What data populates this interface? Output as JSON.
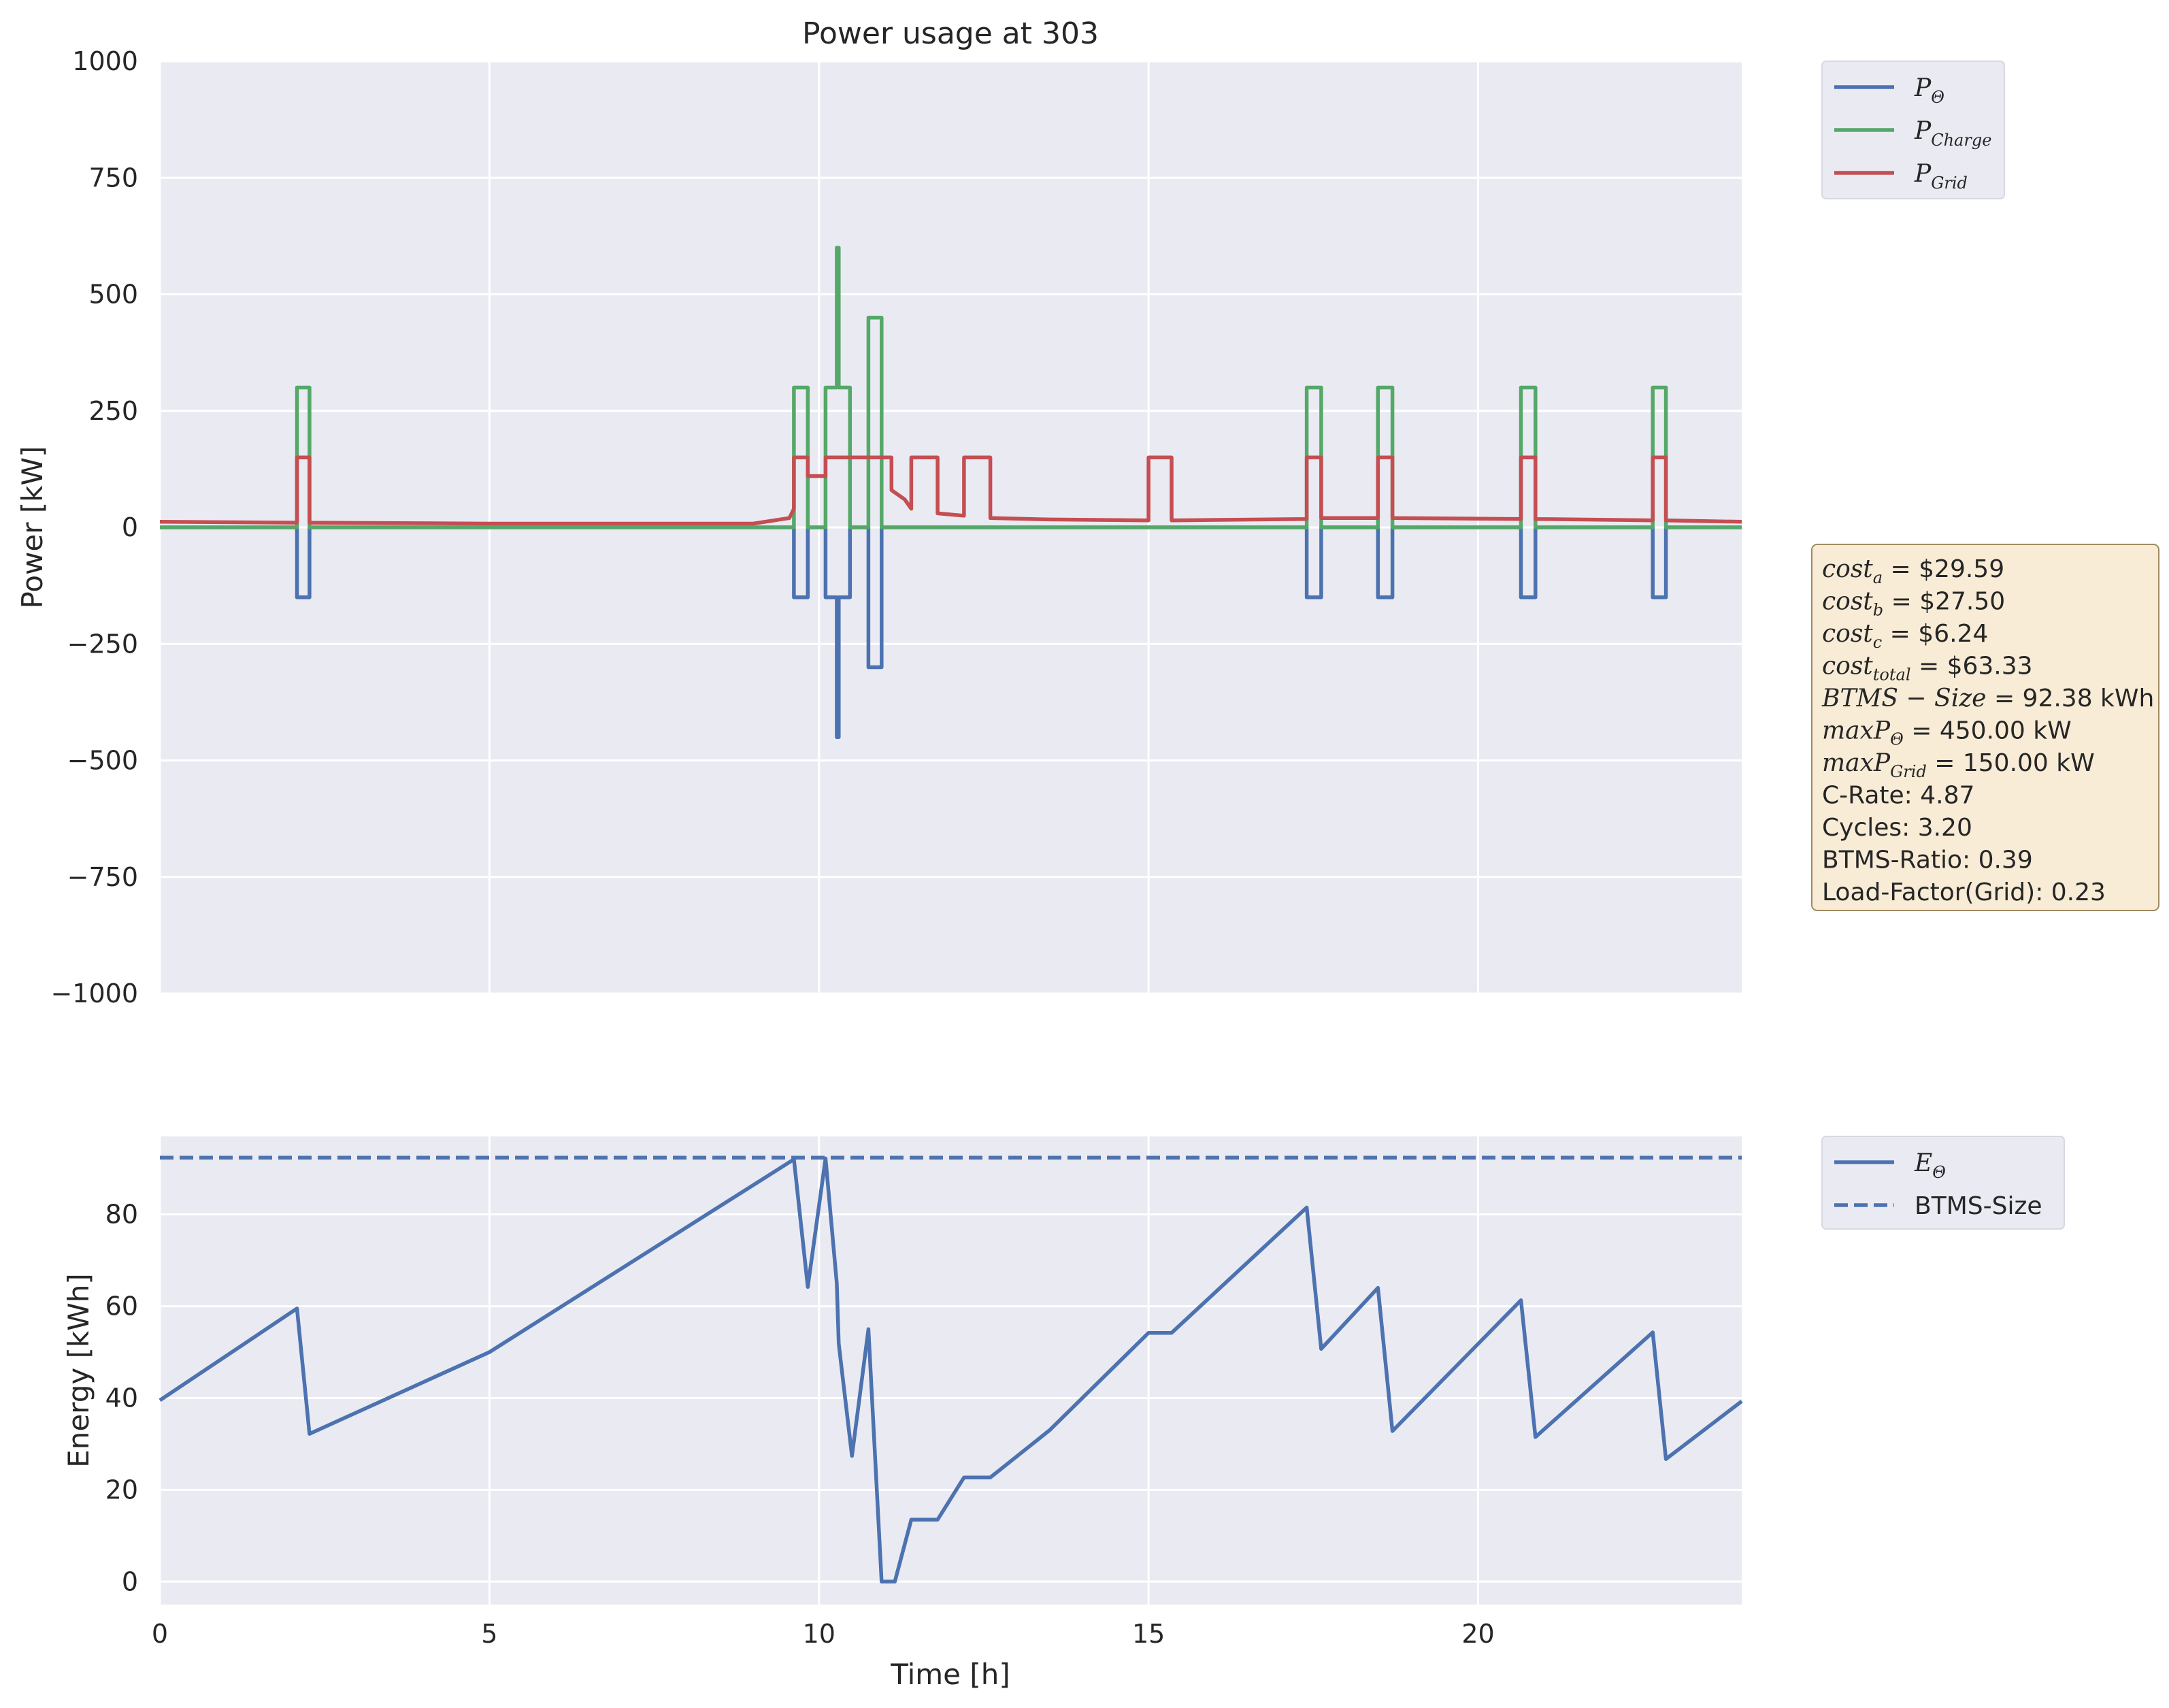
{
  "chart_data": [
    {
      "type": "line",
      "title": "Power usage at 303",
      "xlabel": "",
      "ylabel": "Power [kW]",
      "xlim": [
        0,
        24
      ],
      "ylim": [
        -1000,
        1000
      ],
      "x_ticks": [
        "0",
        "5",
        "10",
        "15",
        "20"
      ],
      "y_ticks": [
        "−1000",
        "−750",
        "−500",
        "−250",
        "0",
        "250",
        "500",
        "750",
        "1000"
      ],
      "grid": true,
      "legend_position": "outside-upper-right",
      "series": [
        {
          "name": "P_Θ",
          "legend_main": "P",
          "legend_sub": "Θ",
          "color": "#4c72b0",
          "points": [
            [
              0,
              0
            ],
            [
              2.08,
              0
            ],
            [
              2.08,
              -150
            ],
            [
              2.27,
              -150
            ],
            [
              2.27,
              0
            ],
            [
              9.62,
              0
            ],
            [
              9.62,
              -150
            ],
            [
              9.83,
              -150
            ],
            [
              9.83,
              0
            ],
            [
              10.1,
              0
            ],
            [
              10.1,
              -150
            ],
            [
              10.27,
              -150
            ],
            [
              10.27,
              -450
            ],
            [
              10.3,
              -450
            ],
            [
              10.3,
              -150
            ],
            [
              10.47,
              -150
            ],
            [
              10.47,
              0
            ],
            [
              10.75,
              0
            ],
            [
              10.75,
              -300
            ],
            [
              10.95,
              -300
            ],
            [
              10.95,
              0
            ],
            [
              17.4,
              0
            ],
            [
              17.4,
              -150
            ],
            [
              17.62,
              -150
            ],
            [
              17.62,
              0
            ],
            [
              18.48,
              0
            ],
            [
              18.48,
              -150
            ],
            [
              18.7,
              -150
            ],
            [
              18.7,
              0
            ],
            [
              20.65,
              0
            ],
            [
              20.65,
              -150
            ],
            [
              20.87,
              -150
            ],
            [
              20.87,
              0
            ],
            [
              22.65,
              0
            ],
            [
              22.65,
              -150
            ],
            [
              22.85,
              -150
            ],
            [
              22.85,
              0
            ],
            [
              24,
              0
            ]
          ]
        },
        {
          "name": "P_Charge",
          "legend_main": "P",
          "legend_sub": "Charge",
          "color": "#55a868",
          "points": [
            [
              0,
              0
            ],
            [
              2.08,
              0
            ],
            [
              2.08,
              300
            ],
            [
              2.27,
              300
            ],
            [
              2.27,
              0
            ],
            [
              9.62,
              0
            ],
            [
              9.62,
              300
            ],
            [
              9.83,
              300
            ],
            [
              9.83,
              0
            ],
            [
              10.1,
              0
            ],
            [
              10.1,
              300
            ],
            [
              10.27,
              300
            ],
            [
              10.27,
              600
            ],
            [
              10.3,
              600
            ],
            [
              10.3,
              300
            ],
            [
              10.47,
              300
            ],
            [
              10.47,
              0
            ],
            [
              10.75,
              0
            ],
            [
              10.75,
              450
            ],
            [
              10.95,
              450
            ],
            [
              10.95,
              0
            ],
            [
              17.4,
              0
            ],
            [
              17.4,
              300
            ],
            [
              17.62,
              300
            ],
            [
              17.62,
              0
            ],
            [
              18.48,
              0
            ],
            [
              18.48,
              300
            ],
            [
              18.7,
              300
            ],
            [
              18.7,
              0
            ],
            [
              20.65,
              0
            ],
            [
              20.65,
              300
            ],
            [
              20.87,
              300
            ],
            [
              20.87,
              0
            ],
            [
              22.65,
              0
            ],
            [
              22.65,
              300
            ],
            [
              22.85,
              300
            ],
            [
              22.85,
              0
            ],
            [
              24,
              0
            ]
          ]
        },
        {
          "name": "P_Grid",
          "legend_main": "P",
          "legend_sub": "Grid",
          "color": "#c44e52",
          "points": [
            [
              0,
              12
            ],
            [
              2.08,
              10
            ],
            [
              2.08,
              150
            ],
            [
              2.27,
              150
            ],
            [
              2.27,
              10
            ],
            [
              5,
              8
            ],
            [
              9,
              8
            ],
            [
              9.55,
              20
            ],
            [
              9.62,
              40
            ],
            [
              9.62,
              150
            ],
            [
              9.83,
              150
            ],
            [
              9.83,
              110
            ],
            [
              10.1,
              110
            ],
            [
              10.1,
              150
            ],
            [
              11.1,
              150
            ],
            [
              11.1,
              80
            ],
            [
              11.3,
              60
            ],
            [
              11.4,
              40
            ],
            [
              11.4,
              150
            ],
            [
              11.8,
              150
            ],
            [
              11.8,
              30
            ],
            [
              12.2,
              25
            ],
            [
              12.2,
              150
            ],
            [
              12.6,
              150
            ],
            [
              12.6,
              20
            ],
            [
              13.5,
              17
            ],
            [
              15,
              15
            ],
            [
              15,
              150
            ],
            [
              15.35,
              150
            ],
            [
              15.35,
              15
            ],
            [
              17.4,
              18
            ],
            [
              17.4,
              150
            ],
            [
              17.62,
              150
            ],
            [
              17.62,
              20
            ],
            [
              18.48,
              20
            ],
            [
              18.48,
              150
            ],
            [
              18.7,
              150
            ],
            [
              18.7,
              20
            ],
            [
              20.65,
              18
            ],
            [
              20.65,
              150
            ],
            [
              20.87,
              150
            ],
            [
              20.87,
              18
            ],
            [
              22.65,
              15
            ],
            [
              22.65,
              150
            ],
            [
              22.85,
              150
            ],
            [
              22.85,
              15
            ],
            [
              24,
              12
            ]
          ]
        }
      ]
    },
    {
      "type": "line",
      "title": "",
      "xlabel": "Time [h]",
      "ylabel": "Energy [kWh]",
      "xlim": [
        0,
        24
      ],
      "ylim": [
        -5,
        97
      ],
      "x_ticks": [
        "0",
        "5",
        "10",
        "15",
        "20"
      ],
      "y_ticks": [
        "0",
        "20",
        "40",
        "60",
        "80"
      ],
      "grid": true,
      "legend_position": "outside-upper-right",
      "series": [
        {
          "name": "E_Θ",
          "legend_main": "E",
          "legend_sub": "Θ",
          "color": "#4c72b0",
          "style": "solid",
          "points": [
            [
              0,
              39.5
            ],
            [
              2.08,
              59.5
            ],
            [
              2.27,
              32.2
            ],
            [
              5,
              50
            ],
            [
              9.62,
              92
            ],
            [
              9.83,
              64.2
            ],
            [
              10.1,
              92.2
            ],
            [
              10.27,
              65
            ],
            [
              10.3,
              51.8
            ],
            [
              10.5,
              27.4
            ],
            [
              10.75,
              55
            ],
            [
              10.95,
              0
            ],
            [
              11.15,
              0
            ],
            [
              11.4,
              13.5
            ],
            [
              11.8,
              13.5
            ],
            [
              12.2,
              22.7
            ],
            [
              12.6,
              22.7
            ],
            [
              13.5,
              33
            ],
            [
              15,
              54.2
            ],
            [
              15.35,
              54.2
            ],
            [
              17.4,
              81.5
            ],
            [
              17.62,
              50.7
            ],
            [
              18.48,
              64
            ],
            [
              18.7,
              32.8
            ],
            [
              20.65,
              61.3
            ],
            [
              20.87,
              31.5
            ],
            [
              22.65,
              54.3
            ],
            [
              22.85,
              26.7
            ],
            [
              24,
              39.3
            ]
          ]
        },
        {
          "name": "BTMS-Size",
          "color": "#4c72b0",
          "style": "dashed",
          "points": [
            [
              0,
              92.38
            ],
            [
              24,
              92.38
            ]
          ]
        }
      ]
    }
  ],
  "info_box": [
    {
      "main": "cost",
      "sub": "a",
      "rest": " = $29.59"
    },
    {
      "main": "cost",
      "sub": "b",
      "rest": " = $27.50"
    },
    {
      "main": "cost",
      "sub": "c",
      "rest": " = $6.24"
    },
    {
      "main": "cost",
      "sub": "total",
      "rest": " = $63.33"
    },
    {
      "main": "BTMS − Size",
      "sub": "",
      "rest": " = 92.38 kWh"
    },
    {
      "main": "maxP",
      "sub": "Θ",
      "rest": " = 450.00 kW"
    },
    {
      "main": "maxP",
      "sub": "Grid",
      "rest": " = 150.00 kW"
    },
    {
      "main": "C-Rate: 4.87",
      "sub": "",
      "rest": ""
    },
    {
      "main": "Cycles: 3.20",
      "sub": "",
      "rest": ""
    },
    {
      "main": "BTMS-Ratio: 0.39",
      "sub": "",
      "rest": ""
    },
    {
      "main": "Load-Factor(Grid): 0.23",
      "sub": "",
      "rest": ""
    }
  ],
  "colors": {
    "axes_bg": "#eaeaf2",
    "grid": "#ffffff",
    "box_bg": "#f8ecd6",
    "box_edge": "#a08a60"
  }
}
